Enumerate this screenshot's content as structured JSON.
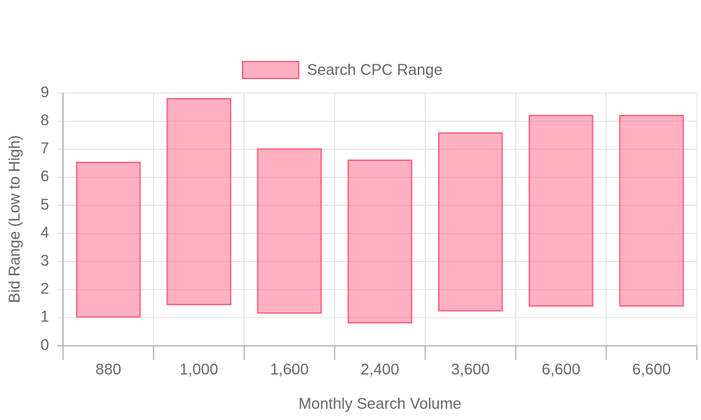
{
  "chart_data": {
    "type": "floating-bar",
    "categories": [
      "880",
      "1,000",
      "1,600",
      "2,400",
      "3,600",
      "6,600",
      "6,600"
    ],
    "series": [
      {
        "name": "Search CPC Range",
        "color": "#ff6384",
        "low": [
          1.03,
          1.47,
          1.17,
          0.82,
          1.25,
          1.42,
          1.42
        ],
        "high": [
          6.53,
          8.8,
          7.01,
          6.61,
          7.58,
          8.2,
          8.2
        ]
      }
    ],
    "x_label": "Monthly Search Volume",
    "y_label": "Bid Range (Low to High)",
    "ylim": [
      0,
      9
    ],
    "yticks": [
      0,
      1,
      2,
      3,
      4,
      5,
      6,
      7,
      8,
      9
    ],
    "grid": true,
    "legend": "top"
  }
}
